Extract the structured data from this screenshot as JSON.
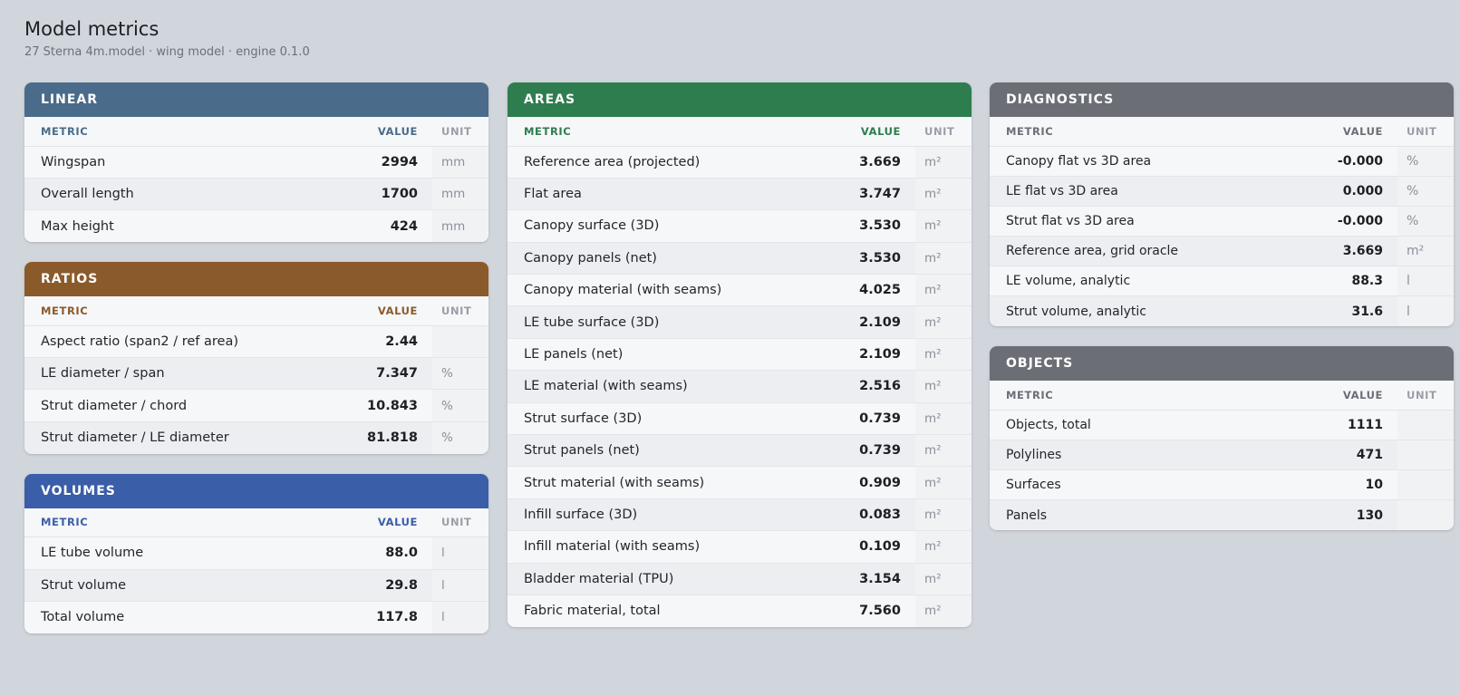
{
  "page": {
    "title": "Model metrics",
    "subtitle": "27 Sterna 4m.model · wing model · engine 0.1.0"
  },
  "columns": {
    "metric": "METRIC",
    "value": "VALUE",
    "unit": "UNIT"
  },
  "colors": {
    "background": "#d1d5dc",
    "linear": "#4a6b8a",
    "ratios": "#8b5a2b",
    "volumes": "#3a5ea8",
    "areas": "#2e7d4f",
    "diagnostics": "#6b6e75",
    "objects": "#6b6e75"
  },
  "linear": {
    "title": "LINEAR",
    "rows": [
      {
        "metric": "Wingspan",
        "value": "2994",
        "unit": "mm"
      },
      {
        "metric": "Overall length",
        "value": "1700",
        "unit": "mm"
      },
      {
        "metric": "Max height",
        "value": "424",
        "unit": "mm"
      }
    ]
  },
  "ratios": {
    "title": "RATIOS",
    "rows": [
      {
        "metric": "Aspect ratio (span2 / ref area)",
        "value": "2.44",
        "unit": ""
      },
      {
        "metric": "LE diameter / span",
        "value": "7.347",
        "unit": "%"
      },
      {
        "metric": "Strut diameter / chord",
        "value": "10.843",
        "unit": "%"
      },
      {
        "metric": "Strut diameter / LE diameter",
        "value": "81.818",
        "unit": "%"
      }
    ]
  },
  "volumes": {
    "title": "VOLUMES",
    "rows": [
      {
        "metric": "LE tube volume",
        "value": "88.0",
        "unit": "l"
      },
      {
        "metric": "Strut volume",
        "value": "29.8",
        "unit": "l"
      },
      {
        "metric": "Total volume",
        "value": "117.8",
        "unit": "l"
      }
    ]
  },
  "areas": {
    "title": "AREAS",
    "rows": [
      {
        "metric": "Reference area (projected)",
        "value": "3.669",
        "unit": "m²"
      },
      {
        "metric": "Flat area",
        "value": "3.747",
        "unit": "m²"
      },
      {
        "metric": "Canopy surface (3D)",
        "value": "3.530",
        "unit": "m²"
      },
      {
        "metric": "Canopy panels (net)",
        "value": "3.530",
        "unit": "m²"
      },
      {
        "metric": "Canopy material (with seams)",
        "value": "4.025",
        "unit": "m²"
      },
      {
        "metric": "LE tube surface (3D)",
        "value": "2.109",
        "unit": "m²"
      },
      {
        "metric": "LE panels (net)",
        "value": "2.109",
        "unit": "m²"
      },
      {
        "metric": "LE material (with seams)",
        "value": "2.516",
        "unit": "m²"
      },
      {
        "metric": "Strut surface (3D)",
        "value": "0.739",
        "unit": "m²"
      },
      {
        "metric": "Strut panels (net)",
        "value": "0.739",
        "unit": "m²"
      },
      {
        "metric": "Strut material (with seams)",
        "value": "0.909",
        "unit": "m²"
      },
      {
        "metric": "Infill surface (3D)",
        "value": "0.083",
        "unit": "m²"
      },
      {
        "metric": "Infill material (with seams)",
        "value": "0.109",
        "unit": "m²"
      },
      {
        "metric": "Bladder material (TPU)",
        "value": "3.154",
        "unit": "m²"
      },
      {
        "metric": "Fabric material, total",
        "value": "7.560",
        "unit": "m²"
      }
    ]
  },
  "diagnostics": {
    "title": "DIAGNOSTICS",
    "rows": [
      {
        "metric": "Canopy flat vs 3D area",
        "value": "-0.000",
        "unit": "%"
      },
      {
        "metric": "LE flat vs 3D area",
        "value": "0.000",
        "unit": "%"
      },
      {
        "metric": "Strut flat vs 3D area",
        "value": "-0.000",
        "unit": "%"
      },
      {
        "metric": "Reference area, grid oracle",
        "value": "3.669",
        "unit": "m²"
      },
      {
        "metric": "LE volume, analytic",
        "value": "88.3",
        "unit": "l"
      },
      {
        "metric": "Strut volume, analytic",
        "value": "31.6",
        "unit": "l"
      }
    ]
  },
  "objects": {
    "title": "OBJECTS",
    "rows": [
      {
        "metric": "Objects, total",
        "value": "1111",
        "unit": ""
      },
      {
        "metric": "Polylines",
        "value": "471",
        "unit": ""
      },
      {
        "metric": "Surfaces",
        "value": "10",
        "unit": ""
      },
      {
        "metric": "Panels",
        "value": "130",
        "unit": ""
      }
    ]
  }
}
